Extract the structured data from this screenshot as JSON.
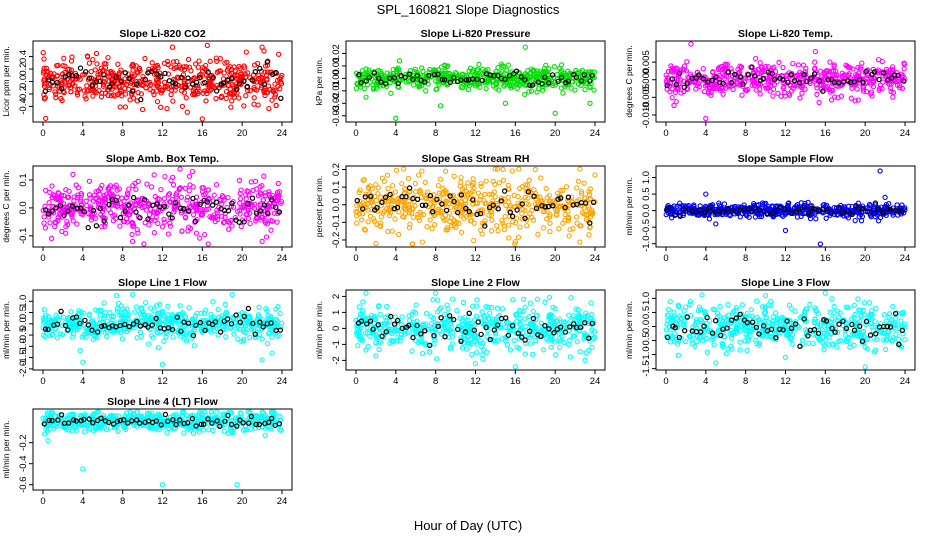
{
  "figure": {
    "title": "SPL_160821  Slope Diagnostics",
    "xlabel": "Hour of Day (UTC)"
  },
  "chart_data": [
    {
      "type": "scatter",
      "title": "Slope Li-820 CO2",
      "ylabel": "Licor ppm per min.",
      "color": "#ff0000",
      "xlim": [
        0,
        24
      ],
      "xticks": [
        0,
        4,
        8,
        12,
        16,
        20,
        24
      ],
      "ylim": [
        -0.65,
        0.65
      ],
      "yticks": [
        0.4,
        0.2,
        0.0,
        -0.2,
        -0.4
      ],
      "ytick_labels": [
        "0.4",
        "0.2",
        "0.0",
        "-0.2",
        "-0.4"
      ],
      "spread": 0.17,
      "center": 0.0,
      "outliers": [
        [
          5,
          0.35
        ],
        [
          10,
          -0.45
        ],
        [
          13,
          0.55
        ],
        [
          14,
          -0.4
        ],
        [
          16,
          -0.6
        ],
        [
          16.5,
          0.58
        ],
        [
          22,
          0.55
        ],
        [
          23,
          -0.3
        ]
      ]
    },
    {
      "type": "scatter",
      "title": "Slope Li-820 Pressure",
      "ylabel": "kPa per min.",
      "color": "#00e000",
      "xlim": [
        0,
        24
      ],
      "xticks": [
        0,
        4,
        8,
        12,
        16,
        20,
        24
      ],
      "ylim": [
        -0.035,
        0.03
      ],
      "yticks": [
        0.02,
        0.01,
        0.0,
        -0.01,
        -0.02,
        -0.03
      ],
      "ytick_labels": [
        "0.02",
        "0.01",
        "0.00",
        "-0.01",
        "-0.02",
        "-0.03"
      ],
      "spread": 0.0045,
      "center": 0.0,
      "outliers": [
        [
          1,
          -0.015
        ],
        [
          4,
          -0.032
        ],
        [
          7,
          -0.01
        ],
        [
          8.5,
          -0.022
        ],
        [
          15,
          -0.02
        ],
        [
          17,
          0.025
        ],
        [
          20,
          -0.028
        ],
        [
          23.5,
          -0.02
        ],
        [
          3.5,
          -0.012
        ],
        [
          12,
          -0.006
        ]
      ]
    },
    {
      "type": "scatter",
      "title": "Slope Li-820 Temp.",
      "ylabel": "degrees C per min.",
      "color": "#ff00ff",
      "xlim": [
        0,
        24
      ],
      "xticks": [
        0,
        4,
        8,
        12,
        16,
        20,
        24
      ],
      "ylim": [
        -0.012,
        0.011
      ],
      "yticks": [
        0.005,
        0.0,
        -0.005,
        -0.01
      ],
      "ytick_labels": [
        "0.005",
        "0.000",
        "-0.005",
        "-0.010"
      ],
      "spread": 0.0022,
      "center": 0.0,
      "outliers": [
        [
          2.5,
          0.011
        ],
        [
          4,
          -0.011
        ],
        [
          9,
          0.006
        ],
        [
          15,
          0.008
        ],
        [
          19,
          -0.006
        ]
      ]
    },
    {
      "type": "scatter",
      "title": "Slope Amb. Box Temp.",
      "ylabel": "degrees C per min.",
      "color": "#ff00ff",
      "xlim": [
        0,
        24
      ],
      "xticks": [
        0,
        4,
        8,
        12,
        16,
        20,
        24
      ],
      "ylim": [
        -0.14,
        0.15
      ],
      "yticks": [
        0.1,
        0.0,
        -0.1
      ],
      "ytick_labels": [
        "0.1",
        "0.0",
        "-0.1"
      ],
      "spread": 0.045,
      "center": 0.0,
      "outliers": [
        [
          3,
          0.12
        ],
        [
          9,
          -0.12
        ],
        [
          15,
          0.13
        ],
        [
          22,
          -0.12
        ]
      ]
    },
    {
      "type": "scatter",
      "title": "Slope Gas Stream RH",
      "ylabel": "percent per min.",
      "color": "#ffa500",
      "xlim": [
        0,
        24
      ],
      "xticks": [
        0,
        4,
        8,
        12,
        16,
        20,
        24
      ],
      "ylim": [
        -0.24,
        0.22
      ],
      "yticks": [
        0.2,
        0.1,
        0.0,
        -0.1,
        -0.2
      ],
      "ytick_labels": [
        "0.2",
        "0.1",
        "0.0",
        "-0.1",
        "-0.2"
      ],
      "spread": 0.08,
      "center": 0.0,
      "outliers": [
        [
          2,
          -0.22
        ],
        [
          9,
          0.19
        ],
        [
          16,
          -0.21
        ],
        [
          18,
          0.2
        ]
      ]
    },
    {
      "type": "scatter",
      "title": "Slope Sample Flow",
      "ylabel": "ml/min per min.",
      "color": "#0000ff",
      "xlim": [
        0,
        24
      ],
      "xticks": [
        0,
        4,
        8,
        12,
        16,
        20,
        24
      ],
      "ylim": [
        -1.1,
        1.35
      ],
      "yticks": [
        1.0,
        0.5,
        0.0,
        -0.5,
        -1.0
      ],
      "ytick_labels": [
        "1.0",
        "0.5",
        "0.0",
        "-0.5",
        "-1.0"
      ],
      "spread": 0.1,
      "center": 0.0,
      "outliers": [
        [
          4,
          0.5
        ],
        [
          5,
          -0.4
        ],
        [
          12,
          -0.6
        ],
        [
          15.5,
          -1.05
        ],
        [
          19,
          -0.3
        ],
        [
          21.5,
          1.2
        ],
        [
          22,
          0.4
        ]
      ]
    },
    {
      "type": "scatter",
      "title": "Slope Line 1 Flow",
      "ylabel": "ml/min per min.",
      "color": "#00ffff",
      "xlim": [
        0,
        24
      ],
      "xticks": [
        0,
        4,
        8,
        12,
        16,
        20,
        24
      ],
      "ylim": [
        -2.05,
        1.5
      ],
      "yticks": [
        1.0,
        0.5,
        0.0,
        -0.5,
        -1.0,
        -1.5,
        -2.0
      ],
      "ytick_labels": [
        "1.0",
        "0.5",
        "0.0",
        "-0.5",
        "-1.0",
        "-1.5",
        "-2.0"
      ],
      "spread": 0.38,
      "center": 0.0,
      "outliers": [
        [
          4,
          -1.7
        ],
        [
          12,
          -1.8
        ],
        [
          19,
          1.3
        ],
        [
          22,
          -1.6
        ],
        [
          23,
          -1.3
        ],
        [
          9,
          1.3
        ]
      ]
    },
    {
      "type": "scatter",
      "title": "Slope Line 2 Flow",
      "ylabel": "ml/min per min.",
      "color": "#00ffff",
      "xlim": [
        0,
        24
      ],
      "xticks": [
        0,
        4,
        8,
        12,
        16,
        20,
        24
      ],
      "ylim": [
        -2.6,
        2.4
      ],
      "yticks": [
        2,
        1,
        0,
        -1,
        -2
      ],
      "ytick_labels": [
        "2",
        "1",
        "0",
        "-1",
        "-2"
      ],
      "spread": 0.7,
      "center": 0.0,
      "outliers": [
        [
          1,
          2.2
        ],
        [
          8,
          2.2
        ],
        [
          12,
          -2.2
        ],
        [
          16,
          -2.4
        ],
        [
          17,
          -1.6
        ],
        [
          23,
          -2
        ]
      ]
    },
    {
      "type": "scatter",
      "title": "Slope Line 3 Flow",
      "ylabel": "ml/min per min.",
      "color": "#00ffff",
      "xlim": [
        0,
        24
      ],
      "xticks": [
        0,
        4,
        8,
        12,
        16,
        20,
        24
      ],
      "ylim": [
        -1.55,
        1.3
      ],
      "yticks": [
        1.0,
        0.5,
        0.0,
        -0.5,
        -1.0,
        -1.5
      ],
      "ytick_labels": [
        "1.0",
        "0.5",
        "0.0",
        "-0.5",
        "-1.0",
        "-1.5"
      ],
      "spread": 0.4,
      "center": 0.0,
      "outliers": [
        [
          5,
          -1.3
        ],
        [
          10,
          1.1
        ],
        [
          16,
          1.2
        ],
        [
          20,
          -1.45
        ],
        [
          12,
          -1.1
        ]
      ]
    },
    {
      "type": "scatter",
      "title": "Slope Line 4 (LT) Flow",
      "ylabel": "ml/min per min.",
      "color": "#00ffff",
      "xlim": [
        0,
        24
      ],
      "xticks": [
        0,
        4,
        8,
        12,
        16,
        20,
        24
      ],
      "ylim": [
        -0.65,
        0.12
      ],
      "yticks": [
        -0.2,
        -0.4,
        -0.6
      ],
      "ytick_labels": [
        "-0.2",
        "-0.4",
        "-0.6"
      ],
      "spread": 0.045,
      "center": 0.0,
      "outliers": [
        [
          4,
          -0.45
        ],
        [
          12,
          -0.6
        ],
        [
          19.5,
          -0.6
        ],
        [
          0.5,
          -0.18
        ]
      ]
    }
  ]
}
